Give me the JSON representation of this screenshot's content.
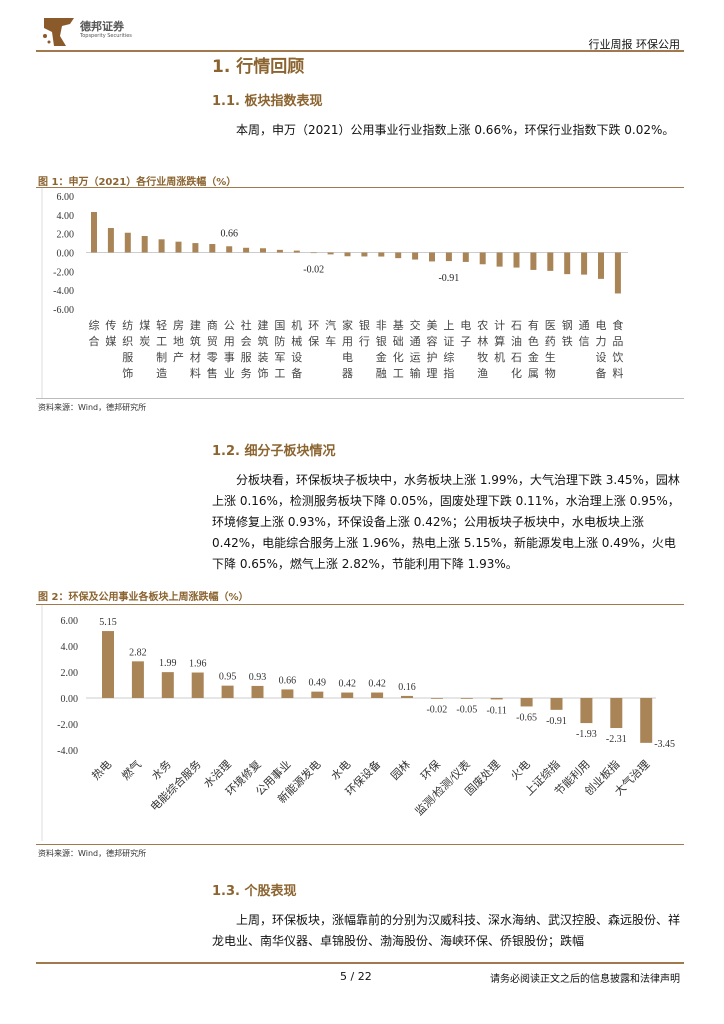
{
  "header": {
    "brand_cn": "德邦证券",
    "brand_en": "Topsperity Securities",
    "report_type": "行业周报 环保公用"
  },
  "section1": {
    "title": "1. 行情回顾"
  },
  "section1_1": {
    "title": "1.1. 板块指数表现",
    "text": "本周，申万（2021）公用事业行业指数上涨 0.66%，环保行业指数下跌 0.02%。"
  },
  "figure1": {
    "caption": "图 1：申万（2021）各行业周涨跌幅（%）",
    "source": "资料来源：Wind，德邦研究所"
  },
  "section1_2": {
    "title": "1.2. 细分子板块情况",
    "text": "分板块看，环保板块子板块中，水务板块上涨 1.99%，大气治理下跌 3.45%，园林上涨 0.16%，检测服务板块下降 0.05%，固废处理下跌 0.11%，水治理上涨 0.95%，环境修复上涨 0.93%，环保设备上涨 0.42%；公用板块子板块中，水电板块上涨 0.42%，电能综合服务上涨 1.96%，热电上涨 5.15%，新能源发电上涨 0.49%，火电下降 0.65%，燃气上涨 2.82%，节能利用下降 1.93%。"
  },
  "figure2": {
    "caption": "图 2：环保及公用事业各板块上周涨跌幅（%）",
    "source": "资料来源：Wind，德邦研究所"
  },
  "section1_3": {
    "title": "1.3. 个股表现",
    "text": "上周，环保板块，涨幅靠前的分别为汉威科技、深水海纳、武汉控股、森远股份、祥龙电业、南华仪器、卓锦股份、渤海股份、海峡环保、侨银股份；跌幅"
  },
  "footer": {
    "page": "5 / 22",
    "disclaimer": "请务必阅读正文之后的信息披露和法律声明"
  },
  "colors": {
    "bar": "#a98457",
    "accent": "#8b6430"
  },
  "chart_data": [
    {
      "type": "bar",
      "ylim": [
        -6,
        6
      ],
      "yticks": [
        "6.00",
        "4.00",
        "2.00",
        "0.00",
        "-2.00",
        "-4.00",
        "-6.00"
      ],
      "categories": [
        "综合",
        "传媒",
        "纺织服饰",
        "煤炭",
        "轻工制造",
        "房地产",
        "建筑材料",
        "商贸零售",
        "公用事业",
        "社会服务",
        "建筑装饰",
        "国防军工",
        "机械设备",
        "环保",
        "汽车",
        "家用电器",
        "银行",
        "非银金融",
        "基础化工",
        "交通运输",
        "美容护理",
        "上证综指",
        "电子",
        "农林牧渔",
        "计算机",
        "石油石化",
        "有色金属",
        "医药生物",
        "钢铁",
        "通信",
        "电力设备",
        "食品饮料"
      ],
      "values": [
        4.3,
        2.6,
        2.1,
        1.75,
        1.4,
        1.15,
        1.0,
        0.9,
        0.66,
        0.5,
        0.45,
        0.28,
        0.2,
        -0.02,
        -0.2,
        -0.4,
        -0.42,
        -0.43,
        -0.6,
        -0.75,
        -0.95,
        -0.91,
        -1.0,
        -1.25,
        -1.5,
        -1.6,
        -1.85,
        -1.95,
        -2.3,
        -2.35,
        -2.8,
        -4.35
      ],
      "data_labels": [
        {
          "category": "公用事业",
          "label": "0.66"
        },
        {
          "category": "环保",
          "label": "-0.02"
        },
        {
          "category": "上证综指",
          "label": "-0.91"
        }
      ]
    },
    {
      "type": "bar",
      "ylim": [
        -4,
        6
      ],
      "yticks": [
        "6.00",
        "4.00",
        "2.00",
        "0.00",
        "-2.00",
        "-4.00"
      ],
      "categories": [
        "热电",
        "燃气",
        "水务",
        "电能综合服务",
        "水治理",
        "环境修复",
        "公用事业",
        "新能源发电",
        "水电",
        "环保设备",
        "园林",
        "环保",
        "监测/检测/仪表",
        "固废处理",
        "火电",
        "上证综指",
        "节能利用",
        "创业板指",
        "大气治理"
      ],
      "values": [
        5.15,
        2.82,
        1.99,
        1.96,
        0.95,
        0.93,
        0.66,
        0.49,
        0.42,
        0.42,
        0.16,
        -0.02,
        -0.05,
        -0.11,
        -0.65,
        -0.91,
        -1.93,
        -2.31,
        -3.45
      ],
      "labels": [
        "5.15",
        "2.82",
        "1.99",
        "1.96",
        "0.95",
        "0.93",
        "0.66",
        "0.49",
        "0.42",
        "0.42",
        "0.16",
        "-0.02",
        "-0.05",
        "-0.11",
        "-0.65",
        "-0.91",
        "-1.93",
        "-2.31",
        "-3.45"
      ]
    }
  ]
}
